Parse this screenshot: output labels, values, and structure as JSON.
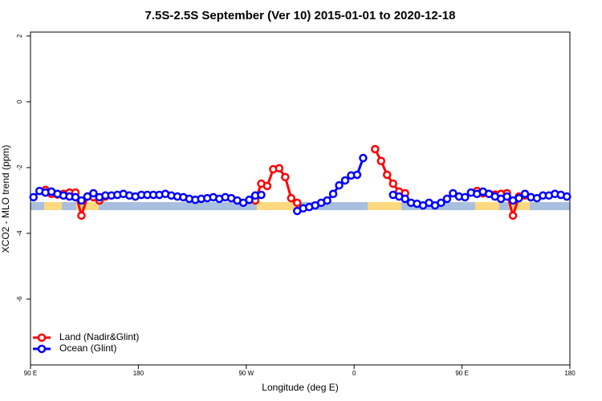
{
  "chart_data": {
    "type": "line",
    "title": "7.5S-2.5S September (Ver 10)   2015-01-01 to 2020-12-18",
    "x_label": "Longitude (deg E)",
    "y_label": "XCO2 - MLO trend (ppm)",
    "xlim": [
      90,
      540
    ],
    "xticks": [
      {
        "value": 90,
        "label": "90 E"
      },
      180,
      {
        "value": 270,
        "label": "90 W"
      },
      {
        "value": 360,
        "label": "0"
      },
      {
        "value": 450,
        "label": "90 E"
      },
      {
        "value": 540,
        "label": "180"
      }
    ],
    "ylim": [
      -8,
      2.12
    ],
    "yticks": [
      -6,
      -4,
      -2,
      0,
      2
    ],
    "legend": "bottom-left",
    "x": [
      92.5,
      97.5,
      102.5,
      107.5,
      112.5,
      117.5,
      122.5,
      127.5,
      132.5,
      137.5,
      142.5,
      147.5,
      152.5,
      157.5,
      162.5,
      167.5,
      172.5,
      177.5,
      182.5,
      187.5,
      192.5,
      197.5,
      202.5,
      207.5,
      212.5,
      217.5,
      222.5,
      227.5,
      232.5,
      237.5,
      242.5,
      247.5,
      252.5,
      257.5,
      262.5,
      267.5,
      272.5,
      277.5,
      282.5,
      287.5,
      292.5,
      297.5,
      302.5,
      307.5,
      312.5,
      317.5,
      322.5,
      327.5,
      332.5,
      337.5,
      342.5,
      347.5,
      352.5,
      357.5,
      362.5,
      367.5,
      372.5,
      377.5,
      382.5,
      387.5,
      392.5,
      397.5,
      402.5,
      407.5,
      412.5,
      417.5,
      422.5,
      427.5,
      432.5,
      437.5,
      442.5,
      447.5,
      452.5,
      457.5,
      462.5,
      467.5,
      472.5,
      477.5,
      482.5,
      487.5,
      492.5,
      497.5,
      502.5,
      507.5,
      512.5,
      517.5,
      522.5,
      527.5,
      532.5,
      537.5
    ],
    "series": [
      {
        "name": "Land (Nadir&Glint)",
        "color": "#ff0000",
        "values": [
          null,
          null,
          -2.68,
          -2.8,
          -2.82,
          -2.8,
          -2.76,
          -2.76,
          -3.46,
          -2.88,
          -2.9,
          -3.0,
          -2.88,
          null,
          null,
          null,
          null,
          null,
          null,
          null,
          null,
          null,
          null,
          null,
          null,
          null,
          null,
          null,
          null,
          null,
          null,
          null,
          null,
          null,
          null,
          null,
          null,
          -3.0,
          -2.49,
          -2.56,
          -2.05,
          -2.02,
          -2.29,
          -2.93,
          -3.07,
          null,
          null,
          null,
          null,
          null,
          null,
          null,
          null,
          null,
          null,
          null,
          null,
          -1.44,
          -1.8,
          -2.22,
          -2.49,
          -2.73,
          -2.78,
          null,
          null,
          null,
          null,
          null,
          null,
          null,
          null,
          null,
          null,
          null,
          -2.71,
          -2.78,
          -2.8,
          -2.82,
          -2.8,
          -2.78,
          -3.46,
          -2.88,
          -2.85,
          -2.9,
          null,
          null,
          null,
          null,
          null,
          null
        ]
      },
      {
        "name": "Ocean (Glint)",
        "color": "#0000ff",
        "values": [
          -2.9,
          -2.71,
          -2.76,
          -2.73,
          -2.8,
          -2.85,
          -2.88,
          -2.9,
          -3.0,
          -2.88,
          -2.78,
          -2.9,
          -2.85,
          -2.85,
          -2.83,
          -2.8,
          -2.85,
          -2.88,
          -2.83,
          -2.83,
          -2.83,
          -2.83,
          -2.8,
          -2.85,
          -2.88,
          -2.9,
          -2.95,
          -2.98,
          -2.95,
          -2.93,
          -2.9,
          -2.95,
          -2.9,
          -2.93,
          -3.0,
          -3.07,
          -2.98,
          -2.85,
          -2.83,
          null,
          null,
          null,
          null,
          null,
          -3.32,
          -3.24,
          -3.2,
          -3.15,
          -3.07,
          -3.0,
          -2.8,
          -2.54,
          -2.39,
          -2.24,
          -2.22,
          -1.71,
          null,
          null,
          null,
          null,
          -2.83,
          -2.88,
          -2.95,
          -3.07,
          -3.1,
          -3.15,
          -3.07,
          -3.15,
          -3.07,
          -2.95,
          -2.78,
          -2.88,
          -2.9,
          -2.76,
          -2.8,
          -2.73,
          -2.8,
          -2.88,
          -2.95,
          -2.88,
          -3.0,
          -2.93,
          -2.8,
          -2.9,
          -2.93,
          -2.85,
          -2.85,
          -2.8,
          -2.83,
          -2.88
        ]
      }
    ]
  }
}
